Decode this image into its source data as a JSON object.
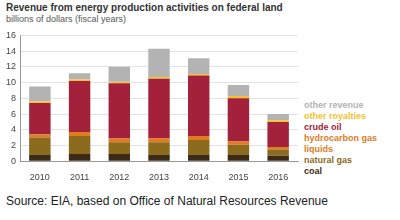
{
  "chart_data": {
    "type": "bar",
    "title": "Revenue from energy production activities on federal land",
    "subtitle": "billions of dollars (fiscal years)",
    "source": "Source: EIA, based on Office of Natural Resources Revenue",
    "categories": [
      "2010",
      "2011",
      "2012",
      "2013",
      "2014",
      "2015",
      "2016"
    ],
    "series": [
      {
        "name": "coal",
        "color": "#3b2a18",
        "values": [
          0.8,
          0.9,
          0.9,
          0.8,
          0.8,
          0.8,
          0.7
        ]
      },
      {
        "name": "natural gas",
        "color": "#8c6a1e",
        "values": [
          2.2,
          2.3,
          1.5,
          1.6,
          1.9,
          1.3,
          0.8
        ]
      },
      {
        "name": "hydrocarbon gas liquids",
        "color": "#e07b1f",
        "values": [
          0.4,
          0.5,
          0.5,
          0.5,
          0.5,
          0.4,
          0.3
        ]
      },
      {
        "name": "crude oil",
        "color": "#a3213a",
        "values": [
          4.0,
          6.5,
          7.0,
          7.6,
          7.7,
          5.5,
          3.2
        ]
      },
      {
        "name": "other royalties",
        "color": "#f2c230",
        "values": [
          0.2,
          0.2,
          0.2,
          0.2,
          0.2,
          0.3,
          0.2
        ]
      },
      {
        "name": "other revenue",
        "color": "#b3b3b3",
        "values": [
          1.9,
          0.8,
          1.9,
          3.6,
          2.0,
          1.4,
          0.8
        ]
      }
    ],
    "ylim": [
      0,
      16
    ],
    "yticks": [
      0,
      2,
      4,
      6,
      8,
      10,
      12,
      14,
      16
    ],
    "stacked": true,
    "grid": true,
    "legend": "right"
  }
}
